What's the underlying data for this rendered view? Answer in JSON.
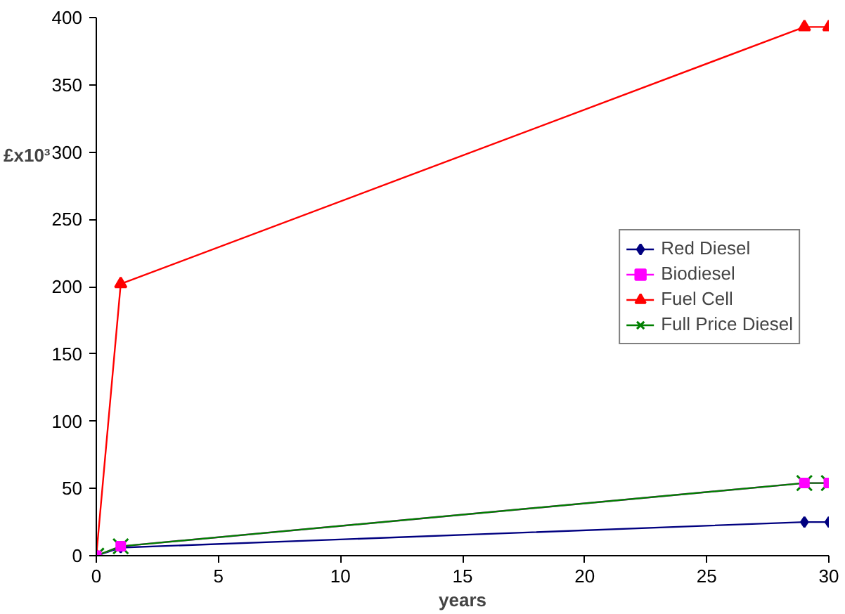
{
  "chart_data": {
    "type": "line",
    "xlabel": "years",
    "ylabel": "£x10³",
    "x": [
      0,
      1,
      29,
      30
    ],
    "series": [
      {
        "name": "Red Diesel",
        "color": "#000080",
        "marker": "diamond",
        "values": [
          0,
          6,
          25,
          25
        ]
      },
      {
        "name": "Biodiesel",
        "color": "#ff00ff",
        "marker": "square",
        "values": [
          0,
          7,
          54,
          54
        ]
      },
      {
        "name": "Fuel Cell",
        "color": "#ff0000",
        "marker": "triangle",
        "values": [
          0,
          202,
          393,
          393
        ]
      },
      {
        "name": "Full Price Diesel",
        "color": "#008000",
        "marker": "cross",
        "values": [
          0,
          7,
          54,
          54
        ]
      }
    ],
    "xlim": [
      0,
      30
    ],
    "xticks": [
      0,
      5,
      10,
      15,
      20,
      25,
      30
    ],
    "ylim": [
      0,
      400
    ],
    "yticks": [
      0,
      50,
      100,
      150,
      200,
      250,
      300,
      350,
      400
    ],
    "grid": false,
    "legend": "right",
    "line_style": "solid"
  }
}
